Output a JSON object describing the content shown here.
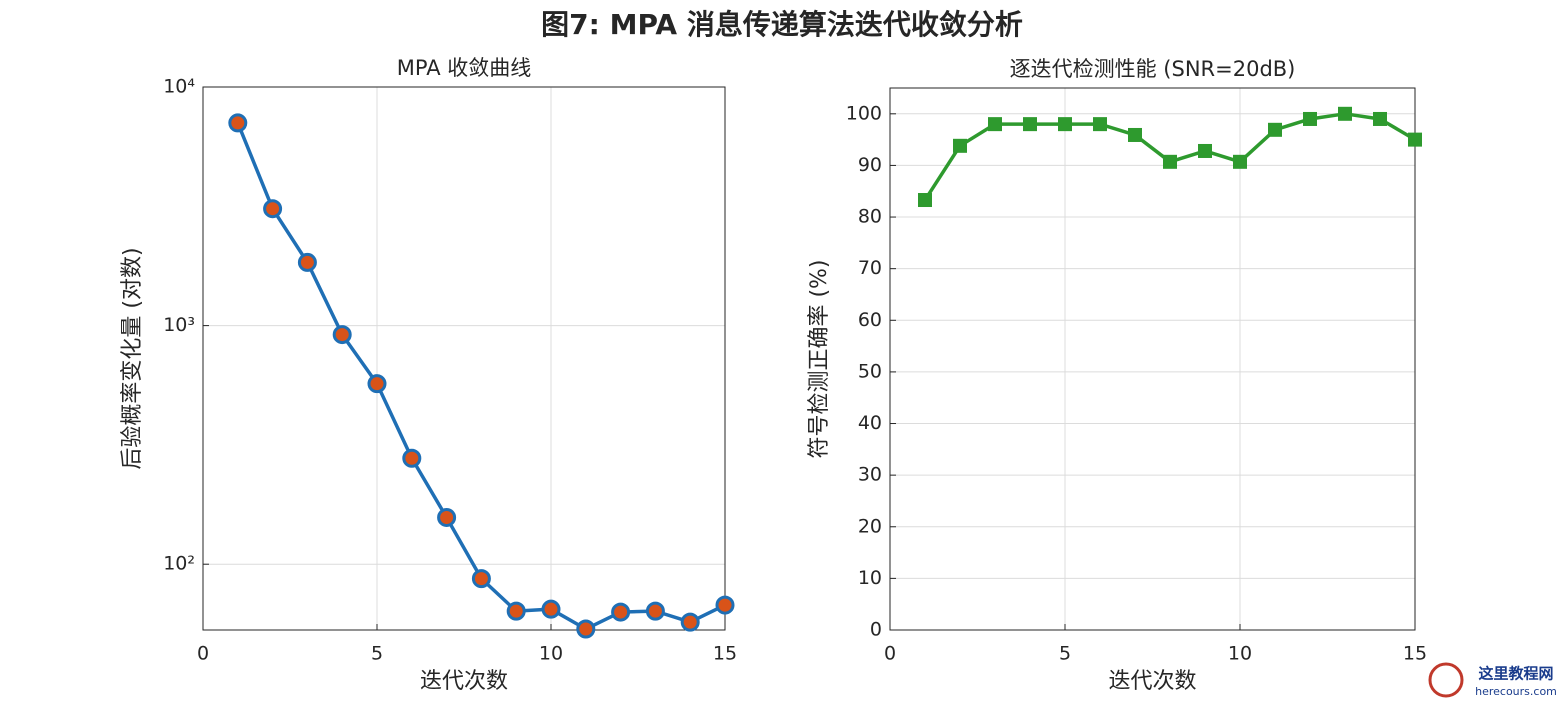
{
  "title": "图7: MPA 消息传递算法迭代收敛分析",
  "watermark": {
    "name": "这里教程网",
    "url": "herecours.com"
  },
  "chart_data": [
    {
      "type": "line",
      "title": "MPA 收敛曲线",
      "xlabel": "迭代次数",
      "ylabel": "后验概率变化量 (对数)",
      "x": [
        1,
        2,
        3,
        4,
        5,
        6,
        7,
        8,
        9,
        10,
        11,
        12,
        13,
        14,
        15
      ],
      "xlim": [
        0,
        15
      ],
      "xticks": [
        0,
        5,
        10,
        15
      ],
      "ylim": [
        53,
        10000
      ],
      "log_scale": true,
      "yticks": [
        {
          "value": 100,
          "label": "10²"
        },
        {
          "value": 1000,
          "label": "10³"
        },
        {
          "value": 10000,
          "label": "10⁴"
        }
      ],
      "grid": true,
      "series": [
        {
          "color": "#1f6fb5",
          "marker": "circle",
          "marker_color": "#d95319",
          "values": [
            7070,
            3090,
            1840,
            917,
            571,
            278,
            157,
            87,
            63.6,
            64.8,
            53.5,
            63,
            63.6,
            57.2,
            67.4
          ]
        }
      ]
    },
    {
      "type": "line",
      "title": "逐迭代检测性能 (SNR=20dB)",
      "xlabel": "迭代次数",
      "ylabel": "符号检测正确率 (%)",
      "x": [
        1,
        2,
        3,
        4,
        5,
        6,
        7,
        8,
        9,
        10,
        11,
        12,
        13,
        14,
        15
      ],
      "xlim": [
        0,
        15
      ],
      "xticks": [
        0,
        5,
        10,
        15
      ],
      "ylim": [
        0,
        105
      ],
      "log_scale": false,
      "yticks": [
        0,
        10,
        20,
        30,
        40,
        50,
        60,
        70,
        80,
        90,
        100
      ],
      "grid": true,
      "series": [
        {
          "color": "#2e9a2e",
          "marker": "square",
          "marker_color": "#2e9a2e",
          "values": [
            83.3,
            93.8,
            98,
            98,
            98,
            98,
            95.9,
            90.7,
            92.8,
            90.7,
            96.9,
            99,
            100,
            99,
            95
          ]
        }
      ]
    }
  ]
}
